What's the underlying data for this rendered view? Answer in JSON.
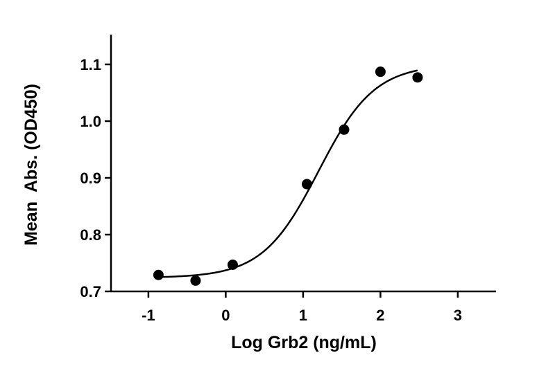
{
  "chart_data": {
    "type": "scatter",
    "title": "",
    "xlabel": "Log Grb2 (ng/mL)",
    "ylabel": "Mean  Abs. (OD450)",
    "xlim": [
      -1.5,
      3.5
    ],
    "ylim": [
      0.7,
      1.15
    ],
    "x_ticks": [
      -1,
      0,
      1,
      2,
      3
    ],
    "y_ticks": [
      0.7,
      0.8,
      0.9,
      1.0,
      1.1
    ],
    "x_tick_labels": [
      "-1",
      "0",
      "1",
      "2",
      "3"
    ],
    "y_tick_labels": [
      "0.7",
      "0.8",
      "0.9",
      "1.0",
      "1.1"
    ],
    "points": [
      {
        "x": -0.87,
        "y": 0.729
      },
      {
        "x": -0.39,
        "y": 0.719
      },
      {
        "x": 0.09,
        "y": 0.747
      },
      {
        "x": 1.05,
        "y": 0.889
      },
      {
        "x": 1.53,
        "y": 0.985
      },
      {
        "x": 2.0,
        "y": 1.087
      },
      {
        "x": 2.48,
        "y": 1.077
      }
    ],
    "fit_curve": {
      "model": "4PL",
      "bottom": 0.724,
      "top": 1.1,
      "log_ec50": 1.2,
      "hill_slope": 1.2,
      "x_range": [
        -0.87,
        2.48
      ]
    },
    "grid": false,
    "legend": "none"
  }
}
